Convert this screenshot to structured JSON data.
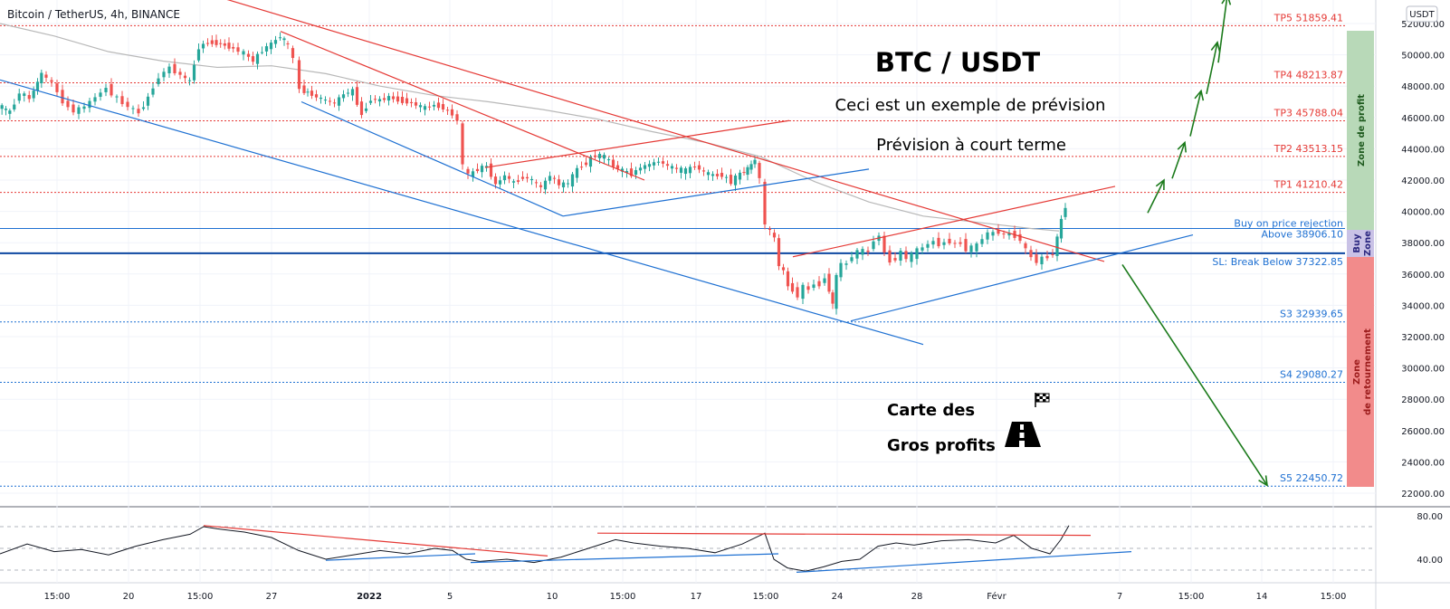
{
  "symbol_title": "Bitcoin / TetherUS, 4h, BINANCE",
  "currency_badge": "USDT",
  "texts": {
    "main_title": "BTC / USDT",
    "subtitle_1": "Ceci est un exemple de prévision",
    "subtitle_2": "Prévision à court terme",
    "map_line_1": "Carte des",
    "map_line_2": "Gros profits"
  },
  "zones": {
    "profit": "Zone de profit",
    "buy_1": "Buy",
    "buy_2": "Zone",
    "reversal_1": "Zone",
    "reversal_2": "de retournement"
  },
  "colors": {
    "bull": "#26a69a",
    "bear": "#ef5350",
    "resistance": "#e53935",
    "support": "#1e70d2",
    "forecast": "#1b7a1b",
    "profit_zone": "#b8d9b8",
    "buy_zone": "#c9c2e6",
    "reversal_zone": "#f28b8b"
  },
  "icons": [
    "flag-icon",
    "road-icon"
  ],
  "chart_data": {
    "type": "candlestick",
    "title": "Bitcoin / TetherUS, 4h, BINANCE",
    "y_axis_label": "USDT",
    "price_range": [
      21500,
      52700
    ],
    "y_ticks": [
      52000,
      50000,
      48000,
      46000,
      44000,
      42000,
      40000,
      38000,
      36000,
      34000,
      32000,
      30000,
      28000,
      26000,
      24000,
      22000
    ],
    "x_labels": [
      "15:00",
      "20",
      "15:00",
      "27",
      "2022",
      "5",
      "10",
      "15:00",
      "17",
      "15:00",
      "24",
      "28",
      "Févr",
      "7",
      "15:00",
      "14",
      "15:00"
    ],
    "price_path": [
      [
        0,
        46800
      ],
      [
        13,
        46300
      ],
      [
        24,
        47600
      ],
      [
        35,
        47200
      ],
      [
        48,
        48800
      ],
      [
        60,
        48200
      ],
      [
        72,
        47000
      ],
      [
        84,
        46400
      ],
      [
        96,
        46700
      ],
      [
        108,
        47300
      ],
      [
        120,
        47900
      ],
      [
        132,
        47200
      ],
      [
        144,
        46700
      ],
      [
        156,
        46300
      ],
      [
        166,
        47300
      ],
      [
        178,
        48600
      ],
      [
        190,
        49200
      ],
      [
        202,
        48700
      ],
      [
        212,
        48300
      ],
      [
        222,
        50500
      ],
      [
        232,
        50800
      ],
      [
        246,
        50700
      ],
      [
        260,
        50400
      ],
      [
        272,
        50100
      ],
      [
        282,
        49600
      ],
      [
        292,
        50300
      ],
      [
        302,
        50700
      ],
      [
        312,
        51200
      ],
      [
        320,
        50600
      ],
      [
        327,
        49700
      ],
      [
        334,
        47800
      ],
      [
        342,
        47600
      ],
      [
        352,
        47300
      ],
      [
        362,
        47100
      ],
      [
        372,
        46900
      ],
      [
        382,
        47500
      ],
      [
        392,
        47700
      ],
      [
        402,
        46200
      ],
      [
        412,
        47200
      ],
      [
        422,
        47100
      ],
      [
        432,
        47300
      ],
      [
        442,
        47100
      ],
      [
        452,
        47000
      ],
      [
        462,
        46800
      ],
      [
        472,
        46600
      ],
      [
        482,
        46800
      ],
      [
        492,
        46600
      ],
      [
        502,
        46200
      ],
      [
        508,
        45800
      ],
      [
        514,
        42900
      ],
      [
        520,
        42300
      ],
      [
        530,
        42700
      ],
      [
        540,
        42900
      ],
      [
        550,
        41700
      ],
      [
        560,
        42300
      ],
      [
        570,
        41800
      ],
      [
        580,
        42200
      ],
      [
        590,
        42000
      ],
      [
        600,
        41500
      ],
      [
        610,
        42300
      ],
      [
        620,
        41700
      ],
      [
        630,
        41800
      ],
      [
        640,
        42700
      ],
      [
        650,
        43100
      ],
      [
        660,
        43600
      ],
      [
        670,
        43500
      ],
      [
        680,
        42900
      ],
      [
        690,
        42600
      ],
      [
        700,
        42400
      ],
      [
        710,
        42800
      ],
      [
        720,
        43000
      ],
      [
        730,
        43200
      ],
      [
        740,
        42900
      ],
      [
        750,
        42700
      ],
      [
        760,
        42600
      ],
      [
        770,
        42900
      ],
      [
        780,
        42500
      ],
      [
        790,
        42300
      ],
      [
        800,
        42300
      ],
      [
        810,
        41900
      ],
      [
        820,
        42400
      ],
      [
        828,
        42700
      ],
      [
        836,
        43300
      ],
      [
        842,
        42000
      ],
      [
        848,
        39100
      ],
      [
        853,
        38700
      ],
      [
        858,
        38300
      ],
      [
        863,
        36500
      ],
      [
        868,
        36200
      ],
      [
        873,
        35200
      ],
      [
        878,
        35000
      ],
      [
        884,
        34600
      ],
      [
        890,
        35200
      ],
      [
        896,
        35000
      ],
      [
        902,
        35400
      ],
      [
        908,
        35300
      ],
      [
        914,
        35800
      ],
      [
        918,
        35000
      ],
      [
        922,
        34000
      ],
      [
        926,
        35800
      ],
      [
        932,
        36700
      ],
      [
        938,
        36600
      ],
      [
        944,
        37200
      ],
      [
        950,
        37400
      ],
      [
        956,
        37500
      ],
      [
        962,
        37400
      ],
      [
        968,
        38200
      ],
      [
        974,
        38400
      ],
      [
        980,
        37400
      ],
      [
        986,
        36800
      ],
      [
        992,
        37000
      ],
      [
        998,
        37400
      ],
      [
        1004,
        37000
      ],
      [
        1010,
        37200
      ],
      [
        1016,
        37500
      ],
      [
        1022,
        37700
      ],
      [
        1028,
        37900
      ],
      [
        1034,
        38100
      ],
      [
        1040,
        37900
      ],
      [
        1046,
        38000
      ],
      [
        1052,
        38100
      ],
      [
        1058,
        37900
      ],
      [
        1064,
        38000
      ],
      [
        1070,
        37600
      ],
      [
        1076,
        37700
      ],
      [
        1082,
        37800
      ],
      [
        1088,
        38300
      ],
      [
        1094,
        38600
      ],
      [
        1100,
        38600
      ],
      [
        1106,
        38700
      ],
      [
        1112,
        38500
      ],
      [
        1118,
        38600
      ],
      [
        1124,
        38400
      ],
      [
        1130,
        38200
      ],
      [
        1136,
        37500
      ],
      [
        1142,
        37100
      ],
      [
        1148,
        36800
      ],
      [
        1154,
        37000
      ],
      [
        1160,
        37100
      ],
      [
        1166,
        37300
      ],
      [
        1170,
        38300
      ],
      [
        1175,
        39500
      ],
      [
        1179,
        40300
      ]
    ],
    "moving_average": [
      [
        0,
        52000
      ],
      [
        60,
        51200
      ],
      [
        120,
        50200
      ],
      [
        180,
        49600
      ],
      [
        240,
        49200
      ],
      [
        300,
        49300
      ],
      [
        360,
        48800
      ],
      [
        420,
        48000
      ],
      [
        480,
        47400
      ],
      [
        540,
        47000
      ],
      [
        600,
        46500
      ],
      [
        660,
        45900
      ],
      [
        720,
        45100
      ],
      [
        780,
        44400
      ],
      [
        840,
        43500
      ],
      [
        900,
        41900
      ],
      [
        960,
        40600
      ],
      [
        1020,
        39700
      ],
      [
        1080,
        39300
      ],
      [
        1140,
        38900
      ],
      [
        1170,
        38750
      ]
    ],
    "levels": [
      {
        "label": "TP5 51859.41",
        "price": 51859.41,
        "kind": "target"
      },
      {
        "label": "TP4 48213.87",
        "price": 48213.87,
        "kind": "target"
      },
      {
        "label": "TP3 45788.04",
        "price": 45788.04,
        "kind": "target"
      },
      {
        "label": "TP2 43513.15",
        "price": 43513.15,
        "kind": "target"
      },
      {
        "label": "TP1 41210.42",
        "price": 41210.42,
        "kind": "target"
      },
      {
        "label": "Buy on price rejection",
        "price": 38906.1,
        "kind": "buy_header"
      },
      {
        "label": "Above 38906.10",
        "price": 38906.1,
        "kind": "buy"
      },
      {
        "label": "SL: Break Below 37322.85",
        "price": 37322.85,
        "kind": "stop"
      },
      {
        "label": "S3 32939.65",
        "price": 32939.65,
        "kind": "support"
      },
      {
        "label": "S4 29080.27",
        "price": 29080.27,
        "kind": "support"
      },
      {
        "label": "S5 22450.72",
        "price": 22450.72,
        "kind": "support"
      }
    ],
    "trendlines": [
      {
        "color": "resistance",
        "points": [
          [
            195,
            54500
          ],
          [
            1220,
            36800
          ]
        ]
      },
      {
        "color": "resistance",
        "points": [
          [
            310,
            51500
          ],
          [
            712,
            42000
          ]
        ]
      },
      {
        "color": "resistance",
        "points": [
          [
            536,
            42800
          ],
          [
            872,
            45800
          ]
        ]
      },
      {
        "color": "resistance",
        "points": [
          [
            876,
            37100
          ],
          [
            1232,
            41600
          ]
        ]
      },
      {
        "color": "support",
        "points": [
          [
            0,
            48400
          ],
          [
            1020,
            31500
          ]
        ]
      },
      {
        "color": "support",
        "points": [
          [
            333,
            47000
          ],
          [
            622,
            39700
          ]
        ]
      },
      {
        "color": "support",
        "points": [
          [
            622,
            39700
          ],
          [
            960,
            42700
          ]
        ]
      },
      {
        "color": "support",
        "points": [
          [
            940,
            33000
          ],
          [
            1318,
            38500
          ]
        ]
      }
    ],
    "forecast_arrows": [
      {
        "from": [
          1268,
          39900
        ],
        "to": [
          1286,
          42000
        ]
      },
      {
        "from": [
          1295,
          42100
        ],
        "to": [
          1309,
          44400
        ]
      },
      {
        "from": [
          1315,
          44800
        ],
        "to": [
          1327,
          47700
        ]
      },
      {
        "from": [
          1333,
          47500
        ],
        "to": [
          1345,
          50800
        ]
      },
      {
        "from": [
          1346,
          49500
        ],
        "to": [
          1356,
          53800
        ]
      },
      {
        "from": [
          1240,
          36600
        ],
        "to": [
          1400,
          22500
        ]
      }
    ],
    "rsi": {
      "value_range": [
        22,
        88
      ],
      "y_ticks": [
        80,
        40
      ],
      "dashed_levels": [
        70,
        50,
        30
      ],
      "path": [
        [
          0,
          45
        ],
        [
          30,
          54
        ],
        [
          60,
          47
        ],
        [
          90,
          49
        ],
        [
          120,
          44
        ],
        [
          150,
          52
        ],
        [
          180,
          58
        ],
        [
          210,
          63
        ],
        [
          225,
          70
        ],
        [
          240,
          68
        ],
        [
          270,
          65
        ],
        [
          300,
          60
        ],
        [
          330,
          48
        ],
        [
          360,
          40
        ],
        [
          390,
          44
        ],
        [
          420,
          48
        ],
        [
          450,
          45
        ],
        [
          480,
          50
        ],
        [
          500,
          48
        ],
        [
          515,
          40
        ],
        [
          530,
          38
        ],
        [
          560,
          40
        ],
        [
          590,
          37
        ],
        [
          620,
          42
        ],
        [
          650,
          50
        ],
        [
          680,
          58
        ],
        [
          700,
          55
        ],
        [
          730,
          52
        ],
        [
          760,
          50
        ],
        [
          790,
          46
        ],
        [
          820,
          54
        ],
        [
          845,
          64
        ],
        [
          855,
          40
        ],
        [
          870,
          32
        ],
        [
          890,
          29
        ],
        [
          910,
          33
        ],
        [
          930,
          38
        ],
        [
          950,
          40
        ],
        [
          970,
          52
        ],
        [
          990,
          55
        ],
        [
          1010,
          53
        ],
        [
          1040,
          57
        ],
        [
          1070,
          58
        ],
        [
          1100,
          55
        ],
        [
          1120,
          62
        ],
        [
          1140,
          50
        ],
        [
          1160,
          45
        ],
        [
          1172,
          58
        ],
        [
          1181,
          71
        ]
      ],
      "lines": [
        {
          "color": "resistance",
          "points": [
            [
              225,
              71
            ],
            [
              605,
              43
            ]
          ]
        },
        {
          "color": "resistance",
          "points": [
            [
              660,
              64
            ],
            [
              1205,
              62
            ]
          ]
        },
        {
          "color": "support",
          "points": [
            [
              360,
              39
            ],
            [
              525,
              45
            ]
          ]
        },
        {
          "color": "support",
          "points": [
            [
              520,
              37
            ],
            [
              860,
              45
            ]
          ]
        },
        {
          "color": "support",
          "points": [
            [
              880,
              28
            ],
            [
              1250,
              47
            ]
          ]
        }
      ]
    }
  }
}
